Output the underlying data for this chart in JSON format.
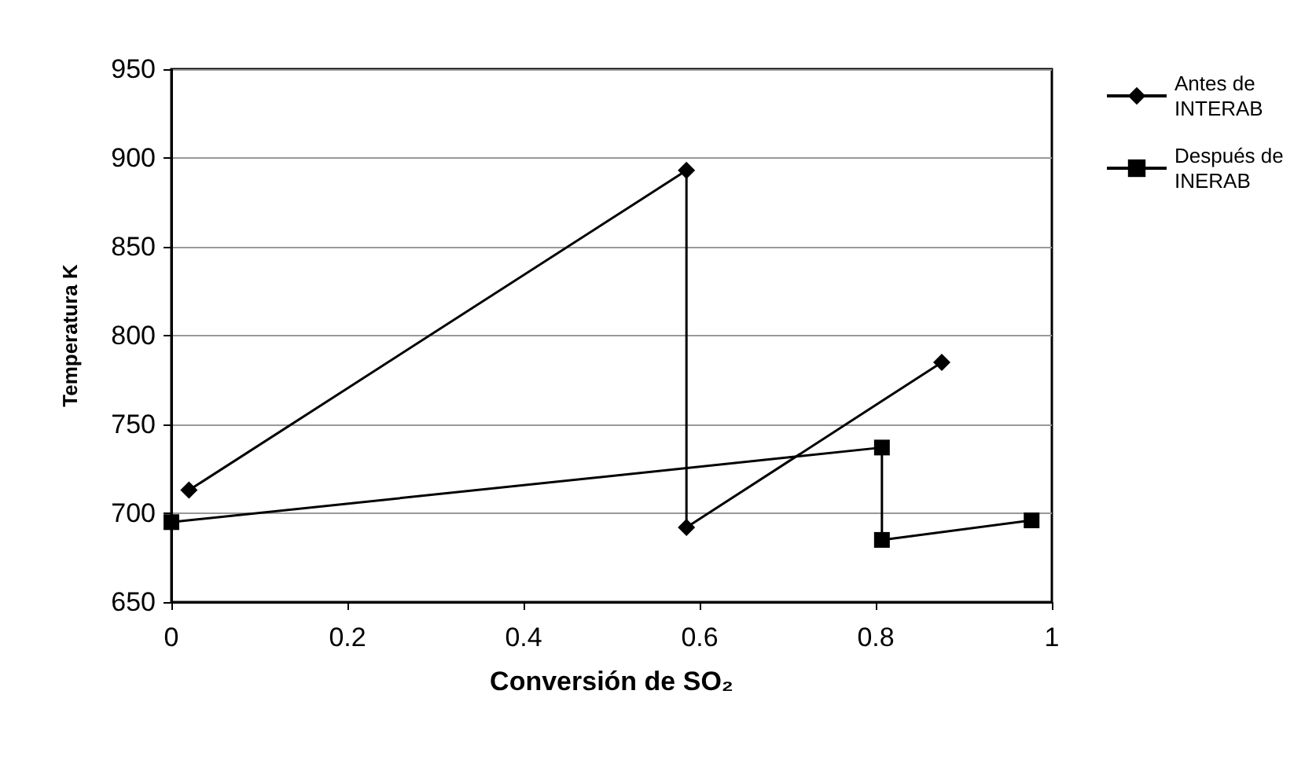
{
  "chart_data": {
    "type": "line",
    "xlabel": "Conversión de SO₂",
    "ylabel": "Temperatura K",
    "series": [
      {
        "name": "Antes de INTERAB",
        "color": "#000000",
        "marker": "diamond",
        "x": [
          0.02,
          0.585,
          0.585,
          0.875
        ],
        "values": [
          713,
          893,
          692,
          785
        ]
      },
      {
        "name": "Después de INERAB",
        "color": "#000000",
        "marker": "square",
        "x": [
          0,
          0.807,
          0.807,
          0.977
        ],
        "values": [
          695,
          737,
          685,
          696
        ]
      }
    ],
    "xlim": [
      0,
      1
    ],
    "xticks": [
      0,
      0.2,
      0.4,
      0.6,
      0.8,
      1
    ],
    "ylim": [
      650,
      950
    ],
    "yticks": [
      650,
      700,
      750,
      800,
      850,
      900,
      950
    ],
    "grid": "y",
    "legend": "right",
    "line_style": "solid"
  }
}
